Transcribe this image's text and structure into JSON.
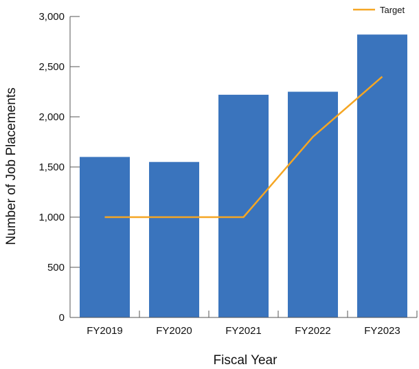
{
  "chart_data": {
    "type": "bar",
    "categories": [
      "FY2019",
      "FY2020",
      "FY2021",
      "FY2022",
      "FY2023"
    ],
    "series": [
      {
        "type": "bar",
        "values": [
          1600,
          1550,
          2220,
          2250,
          2820
        ],
        "color": "#3a74bd"
      },
      {
        "name": "Target",
        "type": "line",
        "values": [
          1000,
          1000,
          1000,
          1800,
          2400
        ],
        "color": "#f5a623"
      }
    ],
    "xlabel": "Fiscal Year",
    "ylabel": "Number of Job Placements",
    "ylim": [
      0,
      3000
    ],
    "yticks": [
      0,
      500,
      1000,
      1500,
      2000,
      2500,
      3000
    ],
    "ytick_labels": [
      "0",
      "500",
      "1,000",
      "1,500",
      "2,000",
      "2,500",
      "3,000"
    ],
    "grid": false,
    "legend": {
      "position": "top-right",
      "entries": [
        "Target"
      ]
    }
  }
}
